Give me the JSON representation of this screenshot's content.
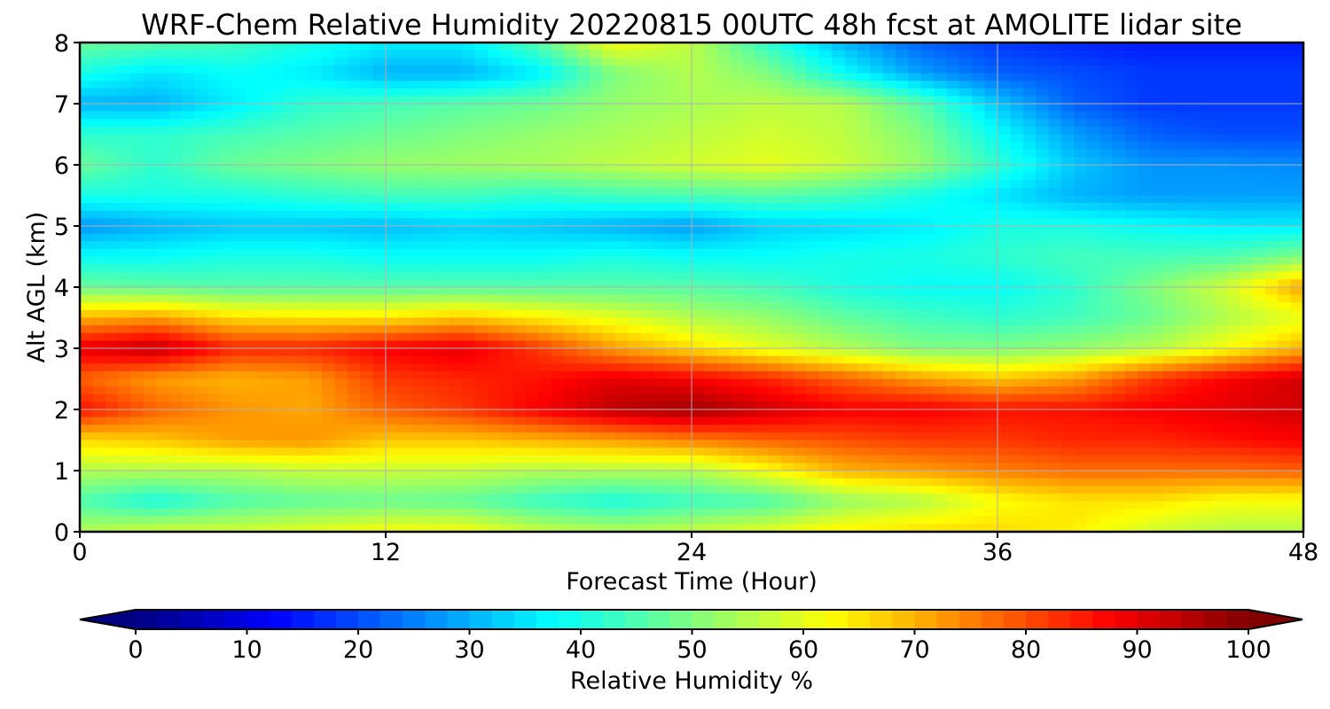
{
  "chart_data": {
    "type": "heatmap",
    "title": "WRF-Chem Relative Humidity 20220815 00UTC 48h fcst at AMOLITE lidar site",
    "xlabel": "Forecast Time (Hour)",
    "ylabel": "Alt AGL (km)",
    "xlim": [
      0,
      48
    ],
    "ylim": [
      0,
      8
    ],
    "xticks": [
      "0",
      "12",
      "24",
      "36",
      "48"
    ],
    "yticks": [
      "0",
      "1",
      "2",
      "3",
      "4",
      "5",
      "6",
      "7",
      "8"
    ],
    "grid": true,
    "colorbar": {
      "label": "Relative Humidity %",
      "range": [
        0,
        100
      ],
      "ticks": [
        "0",
        "10",
        "20",
        "30",
        "40",
        "50",
        "60",
        "70",
        "80",
        "90",
        "100"
      ],
      "colormap": "jet",
      "extend": "both"
    },
    "x": [
      0,
      3,
      6,
      9,
      12,
      15,
      18,
      21,
      24,
      27,
      30,
      33,
      36,
      39,
      42,
      45,
      48
    ],
    "y": [
      0,
      0.5,
      1,
      1.5,
      2,
      2.5,
      3,
      3.5,
      4,
      4.5,
      5,
      5.5,
      6,
      6.5,
      7,
      7.5,
      8
    ],
    "z": [
      [
        55,
        58,
        58,
        60,
        62,
        62,
        57,
        55,
        57,
        60,
        64,
        66,
        66,
        64,
        58,
        55,
        55
      ],
      [
        45,
        40,
        45,
        47,
        48,
        47,
        43,
        40,
        43,
        45,
        52,
        55,
        62,
        65,
        65,
        62,
        62
      ],
      [
        55,
        55,
        55,
        57,
        57,
        57,
        55,
        55,
        55,
        62,
        70,
        72,
        75,
        77,
        77,
        77,
        78
      ],
      [
        66,
        68,
        72,
        73,
        68,
        68,
        70,
        72,
        75,
        78,
        80,
        82,
        82,
        84,
        84,
        86,
        88
      ],
      [
        86,
        78,
        73,
        71,
        78,
        82,
        88,
        94,
        97,
        92,
        88,
        88,
        86,
        86,
        88,
        90,
        92
      ],
      [
        78,
        72,
        70,
        72,
        82,
        84,
        86,
        90,
        88,
        84,
        78,
        72,
        68,
        72,
        82,
        88,
        92
      ],
      [
        90,
        94,
        84,
        84,
        88,
        90,
        82,
        72,
        66,
        60,
        55,
        50,
        50,
        52,
        55,
        62,
        70
      ],
      [
        70,
        72,
        66,
        65,
        65,
        68,
        64,
        60,
        55,
        52,
        47,
        44,
        42,
        44,
        48,
        55,
        60
      ],
      [
        48,
        47,
        46,
        46,
        46,
        46,
        46,
        46,
        46,
        44,
        40,
        38,
        38,
        42,
        50,
        58,
        72
      ],
      [
        38,
        38,
        40,
        40,
        38,
        38,
        38,
        40,
        38,
        38,
        40,
        40,
        42,
        44,
        44,
        45,
        50
      ],
      [
        27,
        30,
        32,
        32,
        31,
        33,
        32,
        30,
        28,
        33,
        34,
        36,
        40,
        40,
        38,
        36,
        36
      ],
      [
        40,
        40,
        40,
        42,
        44,
        44,
        42,
        44,
        45,
        46,
        44,
        40,
        35,
        30,
        28,
        28,
        28
      ],
      [
        48,
        42,
        48,
        50,
        52,
        53,
        54,
        56,
        58,
        60,
        57,
        52,
        42,
        32,
        27,
        27,
        26
      ],
      [
        42,
        42,
        44,
        46,
        48,
        50,
        52,
        54,
        56,
        58,
        56,
        50,
        38,
        28,
        22,
        20,
        20
      ],
      [
        30,
        30,
        36,
        42,
        44,
        46,
        48,
        52,
        54,
        56,
        55,
        46,
        32,
        22,
        18,
        18,
        18
      ],
      [
        40,
        35,
        38,
        36,
        30,
        30,
        36,
        50,
        55,
        50,
        38,
        28,
        22,
        20,
        18,
        18,
        18
      ],
      [
        48,
        46,
        44,
        40,
        36,
        36,
        46,
        62,
        56,
        42,
        30,
        22,
        18,
        16,
        15,
        15,
        15
      ]
    ]
  }
}
